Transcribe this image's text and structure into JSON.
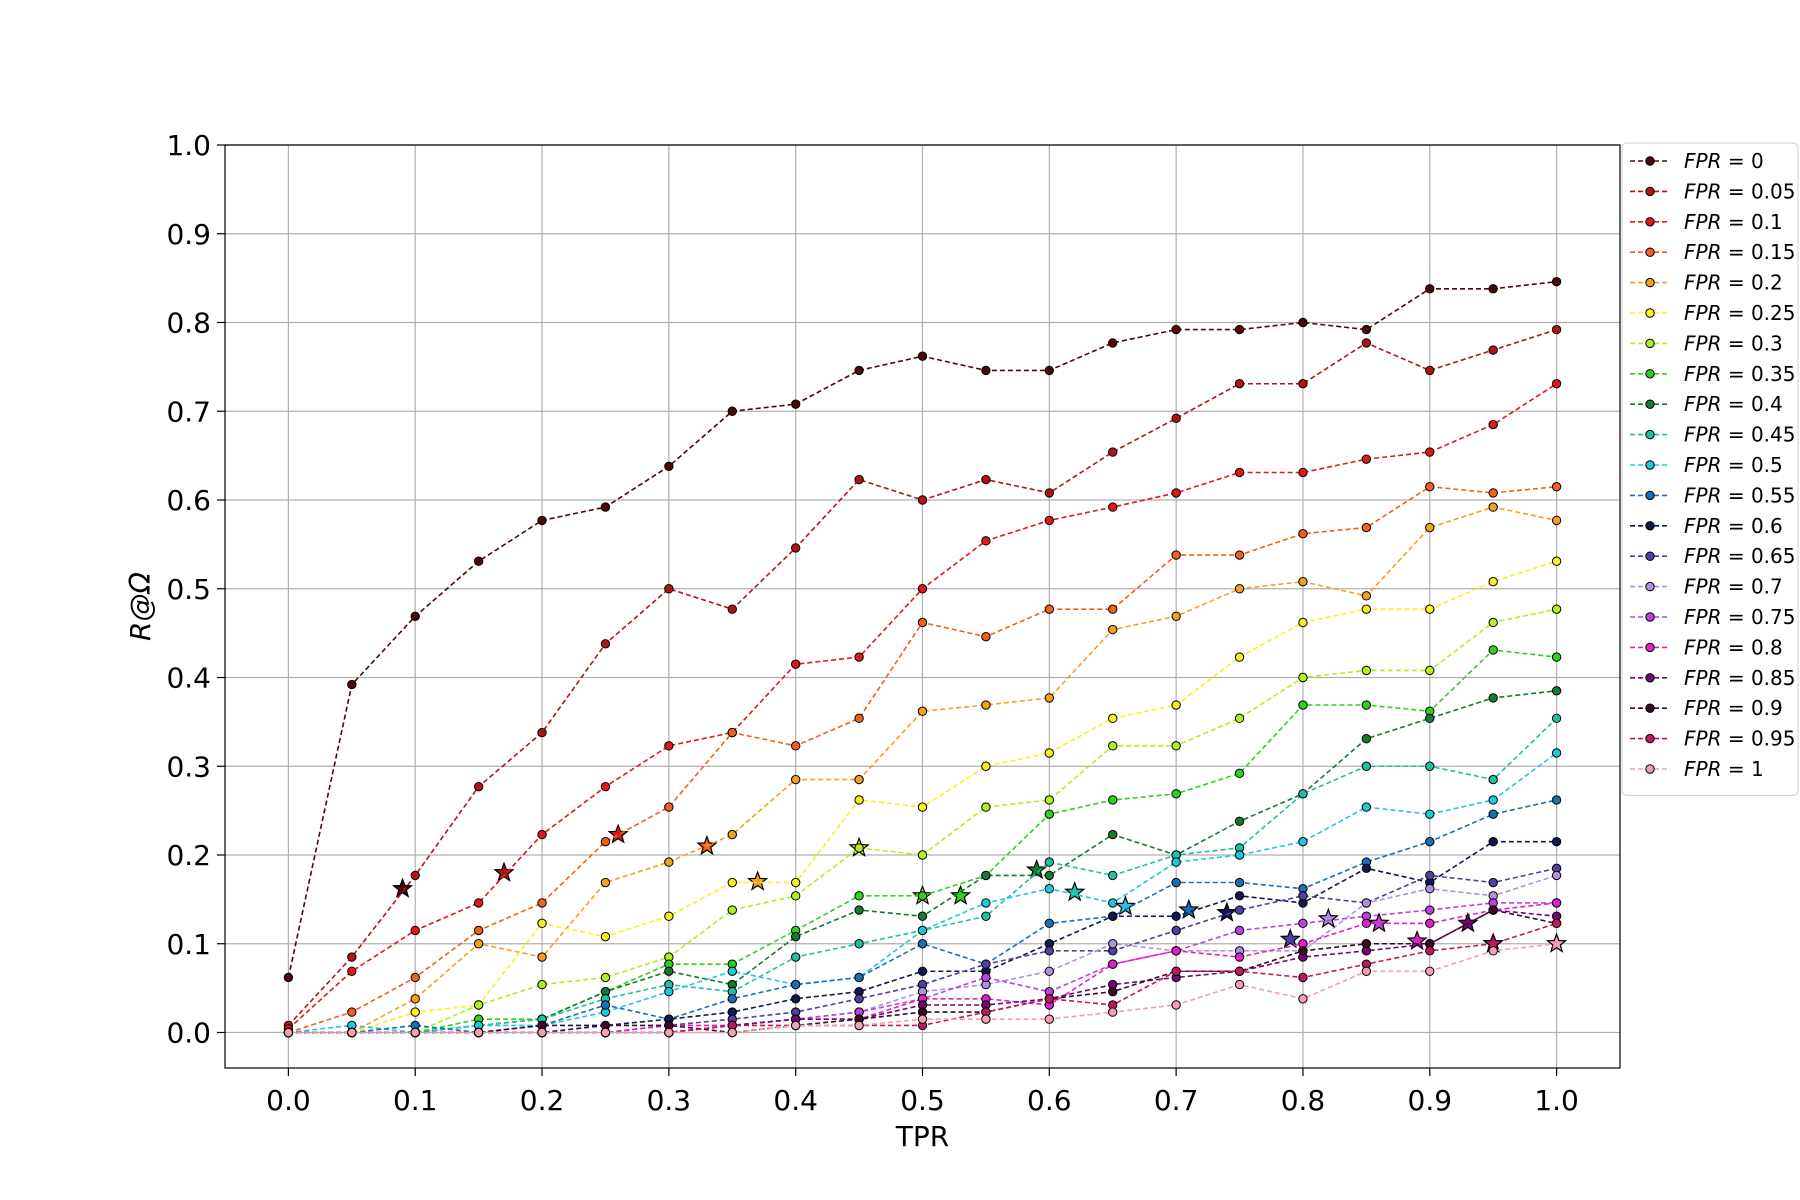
{
  "chart_data": {
    "type": "line",
    "xlabel": "TPR",
    "ylabel": "R@Ω",
    "xlim": [
      -0.05,
      1.05
    ],
    "ylim": [
      -0.04,
      1.0
    ],
    "x": [
      0,
      0.05,
      0.1,
      0.15,
      0.2,
      0.25,
      0.3,
      0.35,
      0.4,
      0.45,
      0.5,
      0.55,
      0.6,
      0.65,
      0.7,
      0.75,
      0.8,
      0.85,
      0.9,
      0.95,
      1.0
    ],
    "xticks": [
      "0.0",
      "0.1",
      "0.2",
      "0.3",
      "0.4",
      "0.5",
      "0.6",
      "0.7",
      "0.8",
      "0.9",
      "1.0"
    ],
    "yticks": [
      "0.0",
      "0.1",
      "0.2",
      "0.3",
      "0.4",
      "0.5",
      "0.6",
      "0.7",
      "0.8",
      "0.9",
      "1.0"
    ],
    "grid": true,
    "legend_position": "right, outside plot",
    "line_style": "dashed with circle markers; star marks one point per series",
    "series": [
      {
        "name": "FPR = 0",
        "color": "#4a0808",
        "values": [
          0.062,
          0.392,
          0.469,
          0.531,
          0.577,
          0.592,
          0.638,
          0.7,
          0.708,
          0.746,
          0.762,
          0.746,
          0.746,
          0.777,
          0.792,
          0.792,
          0.8,
          0.792,
          0.838,
          0.838,
          0.846
        ],
        "star": [
          0.09,
          0.162
        ]
      },
      {
        "name": "FPR = 0.05",
        "color": "#b01515",
        "values": [
          0.008,
          0.085,
          0.177,
          0.277,
          0.338,
          0.438,
          0.5,
          0.477,
          0.546,
          0.623,
          0.6,
          0.623,
          0.608,
          0.654,
          0.692,
          0.731,
          0.731,
          0.777,
          0.746,
          0.769,
          0.792
        ],
        "star": [
          0.17,
          0.18
        ]
      },
      {
        "name": "FPR = 0.1",
        "color": "#e01818",
        "values": [
          0.004,
          0.069,
          0.115,
          0.146,
          0.223,
          0.277,
          0.323,
          0.338,
          0.415,
          0.423,
          0.5,
          0.554,
          0.577,
          0.592,
          0.608,
          0.631,
          0.631,
          0.646,
          0.654,
          0.685,
          0.731
        ],
        "star": [
          0.26,
          0.223
        ]
      },
      {
        "name": "FPR = 0.15",
        "color": "#f0601e",
        "values": [
          0.0,
          0.023,
          0.062,
          0.115,
          0.146,
          0.215,
          0.254,
          0.338,
          0.323,
          0.354,
          0.462,
          0.446,
          0.477,
          0.477,
          0.538,
          0.538,
          0.562,
          0.569,
          0.615,
          0.608,
          0.615
        ],
        "star": [
          0.33,
          0.21
        ]
      },
      {
        "name": "FPR = 0.2",
        "color": "#f5a020",
        "values": [
          0.0,
          0.0,
          0.038,
          0.1,
          0.085,
          0.169,
          0.192,
          0.223,
          0.285,
          0.285,
          0.362,
          0.369,
          0.377,
          0.454,
          0.469,
          0.5,
          0.508,
          0.492,
          0.569,
          0.592,
          0.577
        ],
        "star": [
          0.37,
          0.17
        ]
      },
      {
        "name": "FPR = 0.25",
        "color": "#f8f020",
        "values": [
          0.0,
          0.0,
          0.023,
          0.031,
          0.123,
          0.108,
          0.131,
          0.169,
          0.169,
          0.262,
          0.254,
          0.3,
          0.315,
          0.354,
          0.369,
          0.423,
          0.462,
          0.477,
          0.477,
          0.508,
          0.531
        ],
        "star": [
          0.45,
          0.208
        ]
      },
      {
        "name": "FPR = 0.3",
        "color": "#b0f020",
        "values": [
          0.0,
          0.0,
          0.0,
          0.031,
          0.054,
          0.062,
          0.085,
          0.138,
          0.154,
          0.208,
          0.2,
          0.254,
          0.262,
          0.323,
          0.323,
          0.354,
          0.4,
          0.408,
          0.408,
          0.462,
          0.477
        ],
        "star": [
          0.5,
          0.154
        ]
      },
      {
        "name": "FPR = 0.35",
        "color": "#30d020",
        "values": [
          0.0,
          0.0,
          0.0,
          0.015,
          0.015,
          0.046,
          0.077,
          0.077,
          0.115,
          0.154,
          0.154,
          0.177,
          0.246,
          0.262,
          0.269,
          0.292,
          0.369,
          0.369,
          0.362,
          0.431,
          0.423
        ],
        "star": [
          0.53,
          0.154
        ]
      },
      {
        "name": "FPR = 0.4",
        "color": "#157a30",
        "values": [
          0.0,
          0.0,
          0.0,
          0.008,
          0.015,
          0.046,
          0.069,
          0.054,
          0.108,
          0.138,
          0.131,
          0.177,
          0.177,
          0.223,
          0.2,
          0.238,
          0.269,
          0.331,
          0.354,
          0.377,
          0.385
        ],
        "star": [
          0.59,
          0.183
        ]
      },
      {
        "name": "FPR = 0.45",
        "color": "#20c0a0",
        "values": [
          0.0,
          0.0,
          0.0,
          0.008,
          0.015,
          0.038,
          0.054,
          0.046,
          0.085,
          0.1,
          0.115,
          0.131,
          0.192,
          0.177,
          0.2,
          0.208,
          0.269,
          0.3,
          0.3,
          0.285,
          0.354
        ],
        "star": [
          0.62,
          0.158
        ]
      },
      {
        "name": "FPR = 0.5",
        "color": "#20c8d8",
        "values": [
          0.0,
          0.008,
          0.0,
          0.008,
          0.008,
          0.023,
          0.046,
          0.069,
          0.054,
          0.062,
          0.115,
          0.146,
          0.162,
          0.146,
          0.192,
          0.2,
          0.215,
          0.254,
          0.246,
          0.262,
          0.315
        ],
        "star": [
          0.66,
          0.142
        ]
      },
      {
        "name": "FPR = 0.55",
        "color": "#1870b8",
        "values": [
          0.0,
          0.0,
          0.008,
          0.0,
          0.008,
          0.031,
          0.015,
          0.038,
          0.054,
          0.062,
          0.1,
          0.077,
          0.123,
          0.131,
          0.169,
          0.169,
          0.162,
          0.192,
          0.215,
          0.246,
          0.262
        ],
        "star": [
          0.71,
          0.138
        ]
      },
      {
        "name": "FPR = 0.6",
        "color": "#101850",
        "values": [
          0.0,
          0.0,
          0.0,
          0.0,
          0.0,
          0.008,
          0.015,
          0.023,
          0.038,
          0.046,
          0.069,
          0.069,
          0.1,
          0.131,
          0.131,
          0.154,
          0.146,
          0.185,
          0.169,
          0.215,
          0.215
        ],
        "star": [
          0.74,
          0.135
        ]
      },
      {
        "name": "FPR = 0.65",
        "color": "#5040a0",
        "values": [
          0.0,
          0.0,
          0.0,
          0.0,
          0.0,
          0.0,
          0.008,
          0.015,
          0.023,
          0.038,
          0.054,
          0.077,
          0.092,
          0.092,
          0.115,
          0.138,
          0.154,
          0.146,
          0.177,
          0.169,
          0.185
        ],
        "star": [
          0.79,
          0.105
        ]
      },
      {
        "name": "FPR = 0.7",
        "color": "#b090e0",
        "values": [
          0.0,
          0.0,
          0.0,
          0.0,
          0.0,
          0.0,
          0.0,
          0.008,
          0.015,
          0.023,
          0.046,
          0.054,
          0.069,
          0.1,
          0.092,
          0.092,
          0.092,
          0.146,
          0.162,
          0.154,
          0.177
        ],
        "star": [
          0.82,
          0.128
        ]
      },
      {
        "name": "FPR = 0.75",
        "color": "#c040e0",
        "values": [
          0.0,
          0.0,
          0.0,
          0.0,
          0.0,
          0.0,
          0.0,
          0.008,
          0.015,
          0.023,
          0.038,
          0.062,
          0.046,
          0.077,
          0.092,
          0.115,
          0.123,
          0.131,
          0.138,
          0.146,
          0.146
        ],
        "star": [
          0.86,
          0.123
        ]
      },
      {
        "name": "FPR = 0.8",
        "color": "#e020c8",
        "values": [
          0.0,
          0.0,
          0.0,
          0.0,
          0.0,
          0.0,
          0.008,
          0.008,
          0.015,
          0.015,
          0.038,
          0.038,
          0.031,
          0.077,
          0.092,
          0.085,
          0.1,
          0.123,
          0.123,
          0.138,
          0.146
        ],
        "star": [
          0.89,
          0.103
        ]
      },
      {
        "name": "FPR = 0.85",
        "color": "#700a70",
        "values": [
          0.0,
          0.0,
          0.0,
          0.0,
          0.0,
          0.0,
          0.0,
          0.008,
          0.015,
          0.015,
          0.031,
          0.031,
          0.038,
          0.054,
          0.062,
          0.069,
          0.085,
          0.092,
          0.1,
          0.138,
          0.131
        ],
        "star": [
          0.93,
          0.123
        ]
      },
      {
        "name": "FPR = 0.9",
        "color": "#3a0a28",
        "values": [
          0.0,
          0.0,
          0.0,
          0.0,
          0.008,
          0.008,
          0.008,
          0.0,
          0.008,
          0.015,
          0.023,
          0.023,
          0.038,
          0.046,
          0.069,
          0.069,
          0.092,
          0.1,
          0.1,
          0.138,
          0.123
        ],
        "star": [
          0.95,
          0.1
        ]
      },
      {
        "name": "FPR = 0.95",
        "color": "#c01860",
        "values": [
          0.0,
          0.0,
          0.0,
          0.0,
          0.0,
          0.0,
          0.0,
          0.008,
          0.008,
          0.008,
          0.008,
          0.023,
          0.038,
          0.031,
          0.069,
          0.069,
          0.062,
          0.077,
          0.092,
          0.1,
          0.123
        ],
        "star": [
          0.95,
          0.1
        ]
      },
      {
        "name": "FPR = 1",
        "color": "#f0a0b0",
        "values": [
          0.0,
          0.0,
          0.0,
          0.0,
          0.0,
          0.0,
          0.0,
          0.0,
          0.008,
          0.008,
          0.015,
          0.015,
          0.015,
          0.023,
          0.031,
          0.054,
          0.038,
          0.069,
          0.069,
          0.092,
          0.1
        ],
        "star": [
          1.0,
          0.1
        ]
      }
    ]
  }
}
